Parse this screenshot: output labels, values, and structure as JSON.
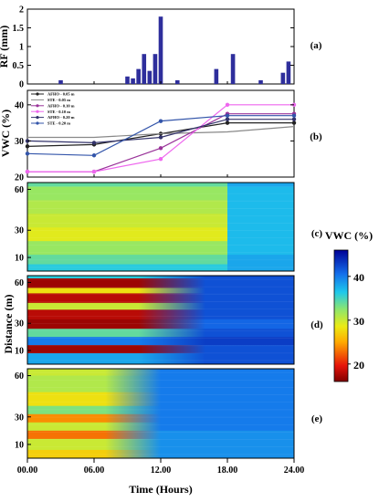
{
  "figure": {
    "x_ticks": [
      "00.00",
      "06.00",
      "12.00",
      "18.00",
      "24.00"
    ],
    "x_label": "Time (Hours)",
    "shared_y_label": "Distance (m)",
    "colorbar": {
      "title": "VWC (%)",
      "ticks": [
        20,
        30,
        40
      ],
      "range": [
        16,
        46
      ]
    }
  },
  "chart_data": [
    {
      "panel": "(a)",
      "type": "bar",
      "ylabel": "RF (mm)",
      "ylim": [
        0,
        2
      ],
      "yticks": [
        "0",
        "0.5",
        "1",
        "1.5",
        "2"
      ],
      "x_hours": [
        3.0,
        9.0,
        9.5,
        10.0,
        10.5,
        11.0,
        11.5,
        12.0,
        13.5,
        17.0,
        18.5,
        21.0,
        23.0,
        23.5
      ],
      "values": [
        0.1,
        0.2,
        0.15,
        0.4,
        0.8,
        0.35,
        0.8,
        1.8,
        0.1,
        0.4,
        0.8,
        0.1,
        0.3,
        0.6
      ],
      "color": "#2e2e9c"
    },
    {
      "panel": "(b)",
      "type": "line",
      "ylabel": "VWC (%)",
      "ylim": [
        20,
        44
      ],
      "yticks": [
        "20",
        "30",
        "40"
      ],
      "x_hours": [
        0,
        6,
        12,
        18,
        24
      ],
      "legend_placement": "top-left",
      "series": [
        {
          "name": "AFHO - 0.05 m",
          "values": [
            28.5,
            29,
            32,
            35,
            35
          ],
          "color": "#222222",
          "marker": "circle"
        },
        {
          "name": "STE - 0.05 m",
          "values": [
            31,
            31,
            32,
            32.5,
            34
          ],
          "color": "#888888",
          "marker": "none"
        },
        {
          "name": "AFHO - 0.10 m",
          "values": [
            21.5,
            21.5,
            28,
            37.5,
            37.5
          ],
          "color": "#993399",
          "marker": "circle"
        },
        {
          "name": "STE - 0.10 m",
          "values": [
            21.5,
            21.5,
            25,
            40,
            40
          ],
          "color": "#ee66ee",
          "marker": "circle"
        },
        {
          "name": "AFHO - 0.20 m",
          "values": [
            30,
            29.5,
            31,
            36,
            36
          ],
          "color": "#33336b",
          "marker": "circle"
        },
        {
          "name": "STE - 0.20 m",
          "values": [
            26.5,
            26,
            35.5,
            37,
            37
          ],
          "color": "#3355aa",
          "marker": "circle"
        }
      ]
    },
    {
      "panel": "(c)",
      "type": "heatmap",
      "xlabel": "Time (Hours)",
      "ylabel": "Distance (m)",
      "yticks": [
        "10",
        "30",
        "60"
      ],
      "y_positions": [
        10,
        30,
        60
      ],
      "colorbar": "VWC (%)",
      "transition_hours": [
        18,
        18
      ],
      "rows": [
        {
          "y_range": [
            62,
            65
          ],
          "early": 34,
          "late": 38
        },
        {
          "y_range": [
            52,
            62
          ],
          "early": 32,
          "late": 37
        },
        {
          "y_range": [
            42,
            52
          ],
          "early": 31,
          "late": 37
        },
        {
          "y_range": [
            32,
            42
          ],
          "early": 30,
          "late": 37
        },
        {
          "y_range": [
            22,
            32
          ],
          "early": 29,
          "late": 37
        },
        {
          "y_range": [
            12,
            22
          ],
          "early": 32,
          "late": 37
        },
        {
          "y_range": [
            5,
            12
          ],
          "early": 34,
          "late": 38
        },
        {
          "y_range": [
            0,
            5
          ],
          "early": 36,
          "late": 38
        }
      ]
    },
    {
      "panel": "(d)",
      "type": "heatmap",
      "xlabel": "Time (Hours)",
      "ylabel": "Distance (m)",
      "yticks": [
        "10",
        "30",
        "60"
      ],
      "y_positions": [
        10,
        30,
        60
      ],
      "colorbar": "VWC (%)",
      "transition_hours": [
        10,
        16
      ],
      "rows": [
        {
          "y_range": [
            63,
            65
          ],
          "early": 36,
          "late": 42
        },
        {
          "y_range": [
            56,
            63
          ],
          "early": 17,
          "late": 42
        },
        {
          "y_range": [
            52,
            56
          ],
          "early": 28,
          "late": 42
        },
        {
          "y_range": [
            45,
            52
          ],
          "early": 18,
          "late": 42
        },
        {
          "y_range": [
            40,
            45
          ],
          "early": 30,
          "late": 42
        },
        {
          "y_range": [
            33,
            40
          ],
          "early": 18,
          "late": 42
        },
        {
          "y_range": [
            26,
            33
          ],
          "early": 17,
          "late": 41
        },
        {
          "y_range": [
            20,
            26
          ],
          "early": 34,
          "late": 42
        },
        {
          "y_range": [
            14,
            20
          ],
          "early": 40,
          "late": 43
        },
        {
          "y_range": [
            8,
            14
          ],
          "early": 17,
          "late": 42
        },
        {
          "y_range": [
            0,
            8
          ],
          "early": 38,
          "late": 42
        }
      ]
    },
    {
      "panel": "(e)",
      "type": "heatmap",
      "xlabel": "Time (Hours)",
      "ylabel": "Distance (m)",
      "yticks": [
        "10",
        "30",
        "60"
      ],
      "y_positions": [
        10,
        30,
        60
      ],
      "colorbar": "VWC (%)",
      "transition_hours": [
        7,
        12
      ],
      "rows": [
        {
          "y_range": [
            60,
            65
          ],
          "early": 30,
          "late": 40
        },
        {
          "y_range": [
            48,
            60
          ],
          "early": 31,
          "late": 40
        },
        {
          "y_range": [
            38,
            48
          ],
          "early": 28,
          "late": 40
        },
        {
          "y_range": [
            32,
            38
          ],
          "early": 33,
          "late": 40
        },
        {
          "y_range": [
            26,
            32
          ],
          "early": 24,
          "late": 40
        },
        {
          "y_range": [
            20,
            26
          ],
          "early": 30,
          "late": 40
        },
        {
          "y_range": [
            14,
            20
          ],
          "early": 23,
          "late": 39
        },
        {
          "y_range": [
            6,
            14
          ],
          "early": 30,
          "late": 39
        },
        {
          "y_range": [
            0,
            6
          ],
          "early": 27,
          "late": 39
        }
      ]
    }
  ]
}
